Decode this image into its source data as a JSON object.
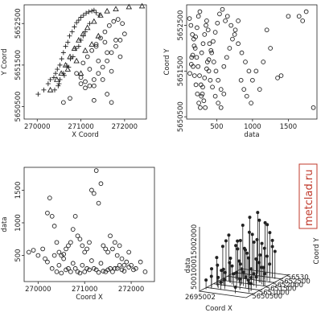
{
  "watermark": "metclad.ru",
  "chart_data": [
    {
      "id": "p1",
      "type": "scatter",
      "xlabel": "X Coord",
      "ylabel": "Y Coord",
      "xlim": [
        269700,
        272500
      ],
      "ylim": [
        5650200,
        5652950
      ],
      "xticks": [
        270000,
        271000,
        272000
      ],
      "yticks": [
        5650500,
        5651500,
        5652500
      ],
      "series": [
        {
          "marker": "plus",
          "color": "#9a9a9a",
          "x": [
            270020,
            270150,
            270250,
            270300,
            270380,
            270420,
            270460,
            270520,
            270560,
            270600,
            270650,
            270700,
            270740,
            270800,
            270850,
            270900,
            270950,
            271000,
            271060,
            271120,
            271180,
            271250,
            271300,
            271350,
            271420,
            270480,
            270520,
            270600,
            270680,
            270760,
            270880,
            271000,
            271100,
            271200,
            270400,
            270500,
            270620,
            270720,
            270820,
            270950,
            271050
          ],
          "y": [
            5650800,
            5650900,
            5651050,
            5651150,
            5651200,
            5651300,
            5651400,
            5651500,
            5651650,
            5651800,
            5651950,
            5652050,
            5652200,
            5652300,
            5652420,
            5652520,
            5652580,
            5652650,
            5652700,
            5652750,
            5652780,
            5652800,
            5652820,
            5652760,
            5652700,
            5651000,
            5651150,
            5651300,
            5651480,
            5651650,
            5651900,
            5652100,
            5652300,
            5652500,
            5650900,
            5651050,
            5651250,
            5651450,
            5651700,
            5651950,
            5652200
          ]
        },
        {
          "marker": "triangle",
          "color": "#222222",
          "x": [
            270300,
            270450,
            270550,
            270650,
            270750,
            270850,
            270950,
            271050,
            271150,
            271300,
            271450,
            271600,
            271800,
            272100,
            272400,
            270700,
            270900,
            271100,
            271250,
            271400,
            271000
          ],
          "y": [
            5650900,
            5651150,
            5651300,
            5651500,
            5651700,
            5651900,
            5652100,
            5652250,
            5652400,
            5652550,
            5652700,
            5652800,
            5652850,
            5652900,
            5652920,
            5651400,
            5651600,
            5651850,
            5652000,
            5652200,
            5651300
          ]
        },
        {
          "marker": "circle",
          "color": "#222222",
          "x": [
            270900,
            271000,
            271100,
            271200,
            271300,
            271400,
            271500,
            271600,
            271700,
            271800,
            271900,
            272000,
            271050,
            271150,
            271250,
            271350,
            271450,
            271550,
            271650,
            271750,
            271850,
            271950,
            271100,
            271300,
            271500,
            271700,
            271900,
            271200,
            271400,
            271600,
            271800,
            271000,
            271350,
            271550
          ],
          "y": [
            5651300,
            5651200,
            5651100,
            5651000,
            5651150,
            5651300,
            5651450,
            5651600,
            5651800,
            5651950,
            5652100,
            5652250,
            5651550,
            5651700,
            5651850,
            5652000,
            5652150,
            5652300,
            5652450,
            5652550,
            5652600,
            5652500,
            5650950,
            5651000,
            5651150,
            5651350,
            5651700,
            5651400,
            5651600,
            5651800,
            5652100,
            5651050,
            5651950,
            5652050
          ]
        },
        {
          "marker": "circle",
          "color": "#9a9a9a",
          "x": [
            270600,
            270750,
            271300,
            271600,
            271700
          ],
          "y": [
            5650600,
            5650700,
            5650650,
            5650800,
            5650600
          ]
        }
      ]
    },
    {
      "id": "p2",
      "type": "scatter",
      "xlabel": "data",
      "ylabel": "Coord Y",
      "xlim": [
        80,
        1900
      ],
      "ylim": [
        5650450,
        5652950
      ],
      "xticks": [
        500,
        1000,
        1500
      ],
      "yticks": [
        5650500,
        5651500,
        5652500
      ],
      "series": [
        {
          "marker": "circle",
          "color": "#222222",
          "x": [
            120,
            140,
            160,
            180,
            200,
            220,
            240,
            260,
            280,
            300,
            320,
            340,
            360,
            380,
            400,
            430,
            460,
            490,
            520,
            560,
            600,
            650,
            700,
            750,
            800,
            850,
            900,
            950,
            1000,
            1100,
            1200,
            1400,
            1500,
            1650,
            1700,
            1750,
            1850,
            150,
            170,
            190,
            210,
            230,
            250,
            270,
            290,
            310,
            330,
            350,
            370,
            390,
            410,
            440,
            480,
            520,
            560,
            600,
            640,
            680,
            720,
            760,
            800,
            840,
            880,
            920,
            980,
            1050,
            1150,
            1250,
            1350,
            125,
            145,
            165,
            185,
            205,
            225,
            245,
            265,
            285,
            305,
            330,
            360,
            390,
            420,
            450,
            480,
            510,
            540,
            580,
            620
          ],
          "y": [
            5652650,
            5652500,
            5652300,
            5652200,
            5652000,
            5651800,
            5651600,
            5651400,
            5651200,
            5651000,
            5650850,
            5650700,
            5652600,
            5652400,
            5652100,
            5651900,
            5651700,
            5651500,
            5651300,
            5651100,
            5651000,
            5652700,
            5652500,
            5652300,
            5652100,
            5651900,
            5651700,
            5651500,
            5651300,
            5651100,
            5652400,
            5651400,
            5652700,
            5652700,
            5652600,
            5652800,
            5650700,
            5651800,
            5651600,
            5651400,
            5651200,
            5651000,
            5650800,
            5650700,
            5651900,
            5652100,
            5652300,
            5652500,
            5651700,
            5651500,
            5651300,
            5651150,
            5650950,
            5650800,
            5650700,
            5651600,
            5651800,
            5652000,
            5652200,
            5652400,
            5652600,
            5651300,
            5651100,
            5650950,
            5650800,
            5651500,
            5651700,
            5652000,
            5651350,
            5651450,
            5651650,
            5651850,
            5652050,
            5652250,
            5652450,
            5652700,
            5652800,
            5650950,
            5651150,
            5651350,
            5651550,
            5651750,
            5651950,
            5652150,
            5652350,
            5652550,
            5652750,
            5652850,
            5652600
          ]
        }
      ]
    },
    {
      "id": "p3",
      "type": "scatter",
      "xlabel": "Coord X",
      "ylabel": "data",
      "xlim": [
        269700,
        272500
      ],
      "ylim": [
        100,
        1850
      ],
      "xticks": [
        270000,
        271000,
        272000
      ],
      "yticks": [
        500,
        1000,
        1500
      ],
      "series": [
        {
          "marker": "circle",
          "color": "#222222",
          "x": [
            269800,
            269900,
            270000,
            270100,
            270150,
            270200,
            270250,
            270300,
            270350,
            270400,
            270450,
            270500,
            270550,
            270600,
            270650,
            270700,
            270750,
            270800,
            270850,
            270900,
            270950,
            271000,
            271050,
            271100,
            271150,
            271200,
            271250,
            271300,
            271350,
            271400,
            271450,
            271500,
            271550,
            271600,
            271650,
            271700,
            271750,
            271800,
            271850,
            271900,
            271950,
            272000,
            272100,
            272200,
            272300,
            270300,
            270400,
            270500,
            270600,
            270700,
            270800,
            270900,
            271000,
            271100,
            271200,
            271300,
            271400,
            271500,
            271600,
            271700,
            271800,
            270200,
            270450,
            270650,
            270850,
            271050,
            271250,
            271450,
            271650,
            271850,
            272050,
            270350,
            270550,
            270750,
            270950,
            271150,
            271350,
            271550,
            271750,
            271950
          ],
          "y": [
            550,
            580,
            500,
            600,
            450,
            1150,
            1380,
            1100,
            950,
            700,
            550,
            500,
            520,
            600,
            650,
            700,
            900,
            1100,
            800,
            750,
            650,
            550,
            600,
            700,
            1500,
            1450,
            1800,
            1300,
            1600,
            650,
            600,
            550,
            800,
            600,
            700,
            500,
            650,
            450,
            350,
            400,
            550,
            350,
            300,
            400,
            250,
            300,
            250,
            230,
            280,
            250,
            300,
            230,
            250,
            280,
            300,
            240,
            260,
            280,
            250,
            300,
            280,
            400,
            350,
            300,
            250,
            300,
            280,
            250,
            300,
            260,
            280,
            500,
            450,
            380,
            350,
            420,
            380,
            300,
            350,
            320
          ]
        }
      ]
    },
    {
      "id": "p4",
      "type": "scatter",
      "xlabel": "Coord X",
      "ylabel": "data",
      "zlabel": "Coord Y",
      "xtick_labels": [
        "2695002"
      ],
      "ytick_labels": [
        "5650500",
        "5651000",
        "5651500",
        "5652000",
        "5652500",
        "56530"
      ],
      "ztick_labels": [
        "500",
        "1000",
        "1500",
        "2000"
      ],
      "series": [
        {
          "marker": "lollipop",
          "color": "#222222",
          "x": [
            0.05,
            0.08,
            0.1,
            0.12,
            0.14,
            0.16,
            0.18,
            0.2,
            0.22,
            0.24,
            0.26,
            0.28,
            0.3,
            0.32,
            0.34,
            0.36,
            0.38,
            0.4,
            0.42,
            0.44,
            0.46,
            0.48,
            0.5,
            0.52,
            0.54,
            0.56,
            0.58,
            0.6,
            0.62,
            0.64,
            0.66,
            0.68,
            0.7,
            0.72,
            0.74,
            0.76,
            0.78,
            0.8,
            0.82,
            0.84,
            0.86,
            0.88,
            0.9,
            0.92,
            0.95,
            0.12,
            0.2,
            0.28,
            0.36,
            0.44,
            0.52,
            0.6,
            0.68,
            0.76,
            0.84,
            0.92,
            0.16,
            0.24,
            0.32,
            0.4,
            0.48,
            0.56,
            0.64,
            0.72,
            0.8,
            0.88
          ],
          "y": [
            0.1,
            0.2,
            0.3,
            0.15,
            0.4,
            0.25,
            0.5,
            0.35,
            0.2,
            0.6,
            0.45,
            0.3,
            0.7,
            0.55,
            0.4,
            0.8,
            0.65,
            0.5,
            0.35,
            0.9,
            0.75,
            0.6,
            0.45,
            0.85,
            0.7,
            0.55,
            0.4,
            0.95,
            0.8,
            0.65,
            0.5,
            0.35,
            0.9,
            0.75,
            0.6,
            0.45,
            0.3,
            0.85,
            0.7,
            0.55,
            0.4,
            0.25,
            0.8,
            0.65,
            0.5,
            0.5,
            0.3,
            0.6,
            0.2,
            0.7,
            0.4,
            0.9,
            0.1,
            0.6,
            0.3,
            0.5,
            0.8,
            0.45,
            0.15,
            0.65,
            0.35,
            0.75,
            0.25,
            0.55,
            0.85,
            0.2
          ],
          "z": [
            300,
            600,
            900,
            400,
            1200,
            700,
            1500,
            500,
            350,
            1100,
            800,
            450,
            1700,
            1300,
            600,
            1900,
            1000,
            700,
            400,
            2000,
            1400,
            900,
            500,
            1800,
            1200,
            800,
            450,
            1600,
            1100,
            700,
            500,
            350,
            1400,
            1000,
            650,
            400,
            300,
            1200,
            800,
            550,
            350,
            250,
            900,
            600,
            400,
            1300,
            500,
            1000,
            300,
            1500,
            700,
            1700,
            200,
            900,
            400,
            600,
            1100,
            650,
            250,
            950,
            450,
            1250,
            350,
            800,
            1000,
            300
          ]
        }
      ]
    }
  ]
}
